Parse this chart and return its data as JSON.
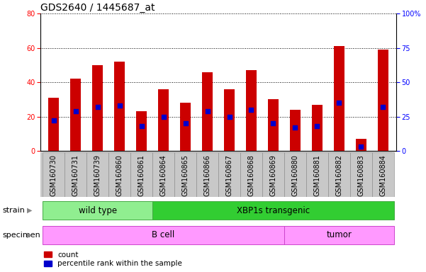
{
  "title": "GDS2640 / 1445687_at",
  "samples": [
    "GSM160730",
    "GSM160731",
    "GSM160739",
    "GSM160860",
    "GSM160861",
    "GSM160864",
    "GSM160865",
    "GSM160866",
    "GSM160867",
    "GSM160868",
    "GSM160869",
    "GSM160880",
    "GSM160881",
    "GSM160882",
    "GSM160883",
    "GSM160884"
  ],
  "count_values": [
    31,
    42,
    50,
    52,
    23,
    36,
    28,
    46,
    36,
    47,
    30,
    24,
    27,
    61,
    7,
    59
  ],
  "percentile_values": [
    22,
    29,
    32,
    33,
    18,
    25,
    20,
    29,
    25,
    30,
    20,
    17,
    18,
    35,
    3,
    32
  ],
  "bar_color": "#CC0000",
  "dot_color": "#0000CC",
  "ylim_left": [
    0,
    80
  ],
  "ylim_right": [
    0,
    100
  ],
  "yticks_left": [
    0,
    20,
    40,
    60,
    80
  ],
  "yticks_right": [
    0,
    25,
    50,
    75,
    100
  ],
  "ytick_labels_right": [
    "0",
    "25",
    "50",
    "75",
    "100%"
  ],
  "strain_labels": [
    "wild type",
    "XBP1s transgenic"
  ],
  "specimen_labels": [
    "B cell",
    "tumor"
  ],
  "wt_color": "#90EE90",
  "xbp_color": "#32CD32",
  "bcell_color": "#FF99FF",
  "tumor_color": "#FF99FF",
  "legend_count_label": "count",
  "legend_pct_label": "percentile rank within the sample",
  "background_color": "#FFFFFF",
  "tick_area_color": "#C8C8C8",
  "bar_width": 0.5,
  "title_fontsize": 10,
  "tick_fontsize": 7,
  "label_fontsize": 8,
  "row_fontsize": 8.5
}
